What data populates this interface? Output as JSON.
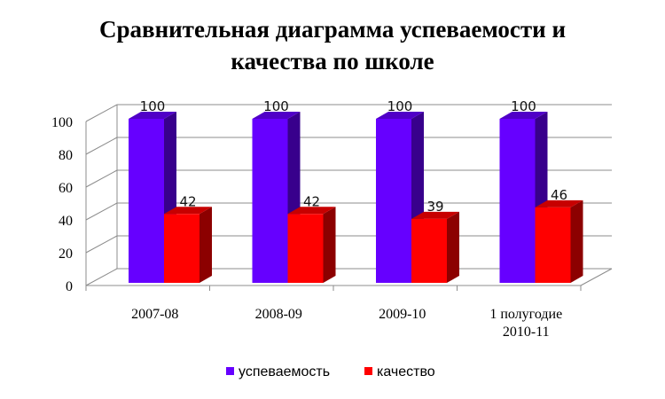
{
  "chart_data": {
    "type": "bar",
    "title_lines": [
      "Сравнительная диаграмма успеваемости и",
      "качества по школе"
    ],
    "categories": [
      [
        "2007-08"
      ],
      [
        "2008-09"
      ],
      [
        "2009-10"
      ],
      [
        "1 полугодие",
        "2010-11"
      ]
    ],
    "series": [
      {
        "name": "успеваемость",
        "values": [
          100,
          100,
          100,
          100
        ],
        "color": "#6600ff"
      },
      {
        "name": "качество",
        "values": [
          42,
          42,
          39,
          46
        ],
        "color": "#ff0000"
      }
    ],
    "ylim": [
      0,
      100
    ],
    "yticks": [
      0,
      20,
      40,
      60,
      80,
      100
    ],
    "grid": true,
    "legend_position": "bottom",
    "three_d": true
  }
}
